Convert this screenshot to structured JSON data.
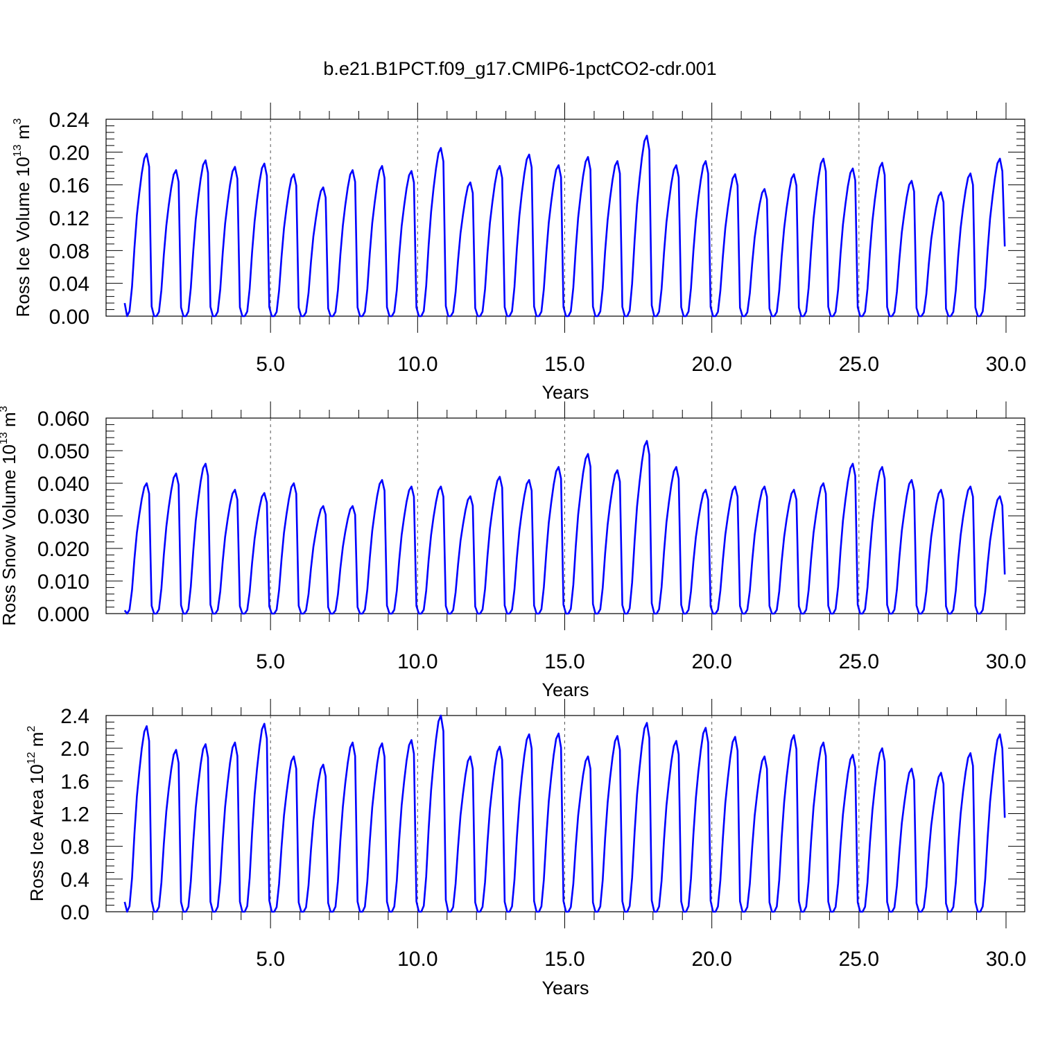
{
  "title": "b.e21.B1PCT.f09_g17.CMIP6-1pctCO2-cdr.001",
  "line_color": "#0000ff",
  "chart_data": [
    {
      "type": "line",
      "ylabel_main": "Ross Ice Volume 10",
      "ylabel_exp": "13",
      "ylabel_unit": "m",
      "ylabel_unit_exp": "3",
      "xlabel": "Years",
      "xlim": [
        0,
        30
      ],
      "ylim": [
        0,
        0.24
      ],
      "xticks": [
        5,
        10,
        15,
        20,
        25,
        30
      ],
      "xtick_labels": [
        "5.0",
        "10.0",
        "15.0",
        "20.0",
        "25.0",
        "30.0"
      ],
      "yticks": [
        0,
        0.04,
        0.08,
        0.12,
        0.16,
        0.2,
        0.24
      ],
      "ytick_labels": [
        "0.00",
        "0.04",
        "0.08",
        "0.12",
        "0.16",
        "0.20",
        "0.24"
      ],
      "grid": "dashed vertical at major x ticks",
      "annual_peaks": [
        0.198,
        0.178,
        0.19,
        0.182,
        0.186,
        0.173,
        0.157,
        0.178,
        0.183,
        0.177,
        0.205,
        0.163,
        0.183,
        0.197,
        0.184,
        0.194,
        0.189,
        0.22,
        0.184,
        0.189,
        0.173,
        0.155,
        0.173,
        0.192,
        0.18,
        0.187,
        0.165,
        0.151,
        0.174,
        0.192
      ],
      "start_value": 0.016,
      "end_value": 0.085
    },
    {
      "type": "line",
      "ylabel_main": "Ross Snow Volume 10",
      "ylabel_exp": "13",
      "ylabel_unit": "m",
      "ylabel_unit_exp": "3",
      "xlabel": "Years",
      "xlim": [
        0,
        30
      ],
      "ylim": [
        0,
        0.06
      ],
      "xticks": [
        5,
        10,
        15,
        20,
        25,
        30
      ],
      "xtick_labels": [
        "5.0",
        "10.0",
        "15.0",
        "20.0",
        "25.0",
        "30.0"
      ],
      "yticks": [
        0,
        0.01,
        0.02,
        0.03,
        0.04,
        0.05,
        0.06
      ],
      "ytick_labels": [
        "0.000",
        "0.010",
        "0.020",
        "0.030",
        "0.040",
        "0.050",
        "0.060"
      ],
      "grid": "dashed vertical at major x ticks",
      "annual_peaks": [
        0.04,
        0.043,
        0.046,
        0.038,
        0.037,
        0.04,
        0.033,
        0.033,
        0.041,
        0.039,
        0.039,
        0.036,
        0.042,
        0.041,
        0.045,
        0.049,
        0.044,
        0.053,
        0.045,
        0.038,
        0.039,
        0.039,
        0.038,
        0.04,
        0.046,
        0.045,
        0.041,
        0.038,
        0.039,
        0.036
      ],
      "start_value": 0.001,
      "end_value": 0.012
    },
    {
      "type": "line",
      "ylabel_main": "Ross Ice Area 10",
      "ylabel_exp": "12",
      "ylabel_unit": "m",
      "ylabel_unit_exp": "2",
      "xlabel": "Years",
      "xlim": [
        0,
        30
      ],
      "ylim": [
        0,
        2.4
      ],
      "xticks": [
        5,
        10,
        15,
        20,
        25,
        30
      ],
      "xtick_labels": [
        "5.0",
        "10.0",
        "15.0",
        "20.0",
        "25.0",
        "30.0"
      ],
      "yticks": [
        0,
        0.4,
        0.8,
        1.2,
        1.6,
        2.0,
        2.4
      ],
      "ytick_labels": [
        "0.0",
        "0.4",
        "0.8",
        "1.2",
        "1.6",
        "2.0",
        "2.4"
      ],
      "grid": "dashed vertical at major x ticks",
      "annual_peaks": [
        2.27,
        1.98,
        2.05,
        2.07,
        2.3,
        1.9,
        1.8,
        2.07,
        2.06,
        2.1,
        2.4,
        1.9,
        2.02,
        2.17,
        2.18,
        1.9,
        2.15,
        2.31,
        2.09,
        2.25,
        2.14,
        1.9,
        2.16,
        2.07,
        1.92,
        2.0,
        1.75,
        1.7,
        1.94,
        2.17
      ],
      "start_value": 0.12,
      "end_value": 1.15
    }
  ]
}
